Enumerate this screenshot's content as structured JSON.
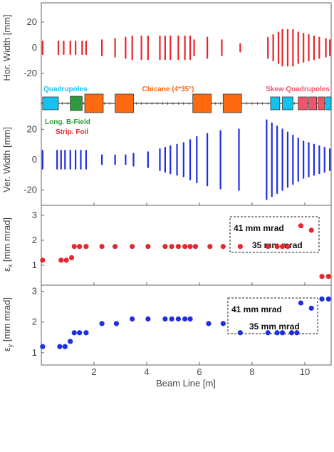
{
  "colors": {
    "red": "#e8262b",
    "blue": "#1f2ee0",
    "orange": "#ff6a10",
    "cyan": "#11c4ee",
    "green": "#2f9a3d",
    "pink": "#f0566a",
    "frame": "#666666"
  },
  "x_axis": {
    "label": "Beam Line [m]",
    "range": [
      0,
      11
    ],
    "ticks": [
      "2",
      "4",
      "6",
      "8",
      "10"
    ]
  },
  "chart_data": [
    {
      "type": "line",
      "ylabel": "Hor. Width [mm]",
      "ylim": [
        -35,
        35
      ],
      "yticks": [
        "20",
        "0",
        "-20"
      ],
      "segments": [
        {
          "x": 0.05,
          "h": 5
        },
        {
          "x": 0.65,
          "h": 5
        },
        {
          "x": 0.85,
          "h": 5
        },
        {
          "x": 1.1,
          "h": 5
        },
        {
          "x": 1.3,
          "h": 5
        },
        {
          "x": 1.55,
          "h": 5
        },
        {
          "x": 1.7,
          "h": 5
        },
        {
          "x": 2.3,
          "h": 6
        },
        {
          "x": 2.8,
          "h": 7
        },
        {
          "x": 3.2,
          "h": 8
        },
        {
          "x": 3.45,
          "h": 9
        },
        {
          "x": 3.8,
          "h": 9
        },
        {
          "x": 4.05,
          "h": 9
        },
        {
          "x": 4.5,
          "h": 9
        },
        {
          "x": 4.7,
          "h": 9
        },
        {
          "x": 4.9,
          "h": 9
        },
        {
          "x": 5.2,
          "h": 9
        },
        {
          "x": 5.45,
          "h": 9
        },
        {
          "x": 5.65,
          "h": 9
        },
        {
          "x": 5.8,
          "h": 6
        },
        {
          "x": 6.3,
          "h": 8
        },
        {
          "x": 6.85,
          "h": 6
        },
        {
          "x": 7.55,
          "h": 3
        },
        {
          "x": 8.6,
          "h": 8
        },
        {
          "x": 8.8,
          "h": 10
        },
        {
          "x": 9.0,
          "h": 12
        },
        {
          "x": 9.15,
          "h": 14
        },
        {
          "x": 9.35,
          "h": 14
        },
        {
          "x": 9.55,
          "h": 14
        },
        {
          "x": 9.75,
          "h": 12
        },
        {
          "x": 9.95,
          "h": 11
        },
        {
          "x": 10.15,
          "h": 10
        },
        {
          "x": 10.35,
          "h": 9
        },
        {
          "x": 10.55,
          "h": 8
        },
        {
          "x": 10.8,
          "h": 7
        },
        {
          "x": 10.95,
          "h": 6
        }
      ]
    },
    {
      "type": "diagram",
      "labels": {
        "quadrupoles": "Quadrupoles",
        "long_bfield": "Long. B-Field",
        "strip_foil": "Strip. Foil",
        "chicane": "Chicane (4*35°)",
        "skew_quadrupoles": "Skew Quadrupoles"
      },
      "elements": [
        {
          "x0": 0.05,
          "x1": 0.65,
          "kind": "cyan"
        },
        {
          "x0": 1.1,
          "x1": 1.55,
          "kind": "green"
        },
        {
          "x0": 1.65,
          "x1": 2.35,
          "kind": "orange"
        },
        {
          "x0": 2.8,
          "x1": 3.5,
          "kind": "orange"
        },
        {
          "x0": 5.75,
          "x1": 6.45,
          "kind": "orange"
        },
        {
          "x0": 6.9,
          "x1": 7.6,
          "kind": "orange"
        },
        {
          "x0": 8.7,
          "x1": 9.05,
          "kind": "cyan"
        },
        {
          "x0": 9.15,
          "x1": 9.55,
          "kind": "cyan"
        },
        {
          "x0": 9.75,
          "x1": 10.1,
          "kind": "pink"
        },
        {
          "x0": 10.15,
          "x1": 10.45,
          "kind": "pink"
        },
        {
          "x0": 10.5,
          "x1": 10.75,
          "kind": "pink"
        },
        {
          "x0": 10.8,
          "x1": 11.0,
          "kind": "cyan"
        }
      ]
    },
    {
      "type": "line",
      "ylabel": "Ver. Width [mm]",
      "ylim": [
        -30,
        30
      ],
      "yticks": [
        "20",
        "0",
        "-20"
      ],
      "segments": [
        {
          "x": 0.05,
          "h": 6
        },
        {
          "x": 0.6,
          "h": 6
        },
        {
          "x": 0.75,
          "h": 6
        },
        {
          "x": 0.9,
          "h": 6
        },
        {
          "x": 1.1,
          "h": 6
        },
        {
          "x": 1.3,
          "h": 6
        },
        {
          "x": 1.5,
          "h": 6
        },
        {
          "x": 1.7,
          "h": 6
        },
        {
          "x": 2.3,
          "h": 3
        },
        {
          "x": 2.8,
          "h": 3
        },
        {
          "x": 3.2,
          "h": 3
        },
        {
          "x": 3.5,
          "h": 4
        },
        {
          "x": 4.05,
          "h": 5
        },
        {
          "x": 4.5,
          "h": 7
        },
        {
          "x": 4.7,
          "h": 8
        },
        {
          "x": 4.9,
          "h": 9
        },
        {
          "x": 5.15,
          "h": 10
        },
        {
          "x": 5.4,
          "h": 11
        },
        {
          "x": 5.65,
          "h": 13
        },
        {
          "x": 5.9,
          "h": 15
        },
        {
          "x": 6.3,
          "h": 17
        },
        {
          "x": 6.8,
          "h": 19
        },
        {
          "x": 7.5,
          "h": 20
        },
        {
          "x": 8.55,
          "h": 26
        },
        {
          "x": 8.75,
          "h": 24
        },
        {
          "x": 8.95,
          "h": 22
        },
        {
          "x": 9.15,
          "h": 20
        },
        {
          "x": 9.35,
          "h": 18
        },
        {
          "x": 9.55,
          "h": 16
        },
        {
          "x": 9.75,
          "h": 14
        },
        {
          "x": 9.95,
          "h": 12
        },
        {
          "x": 10.15,
          "h": 11
        },
        {
          "x": 10.35,
          "h": 10
        },
        {
          "x": 10.55,
          "h": 9
        },
        {
          "x": 10.75,
          "h": 8
        },
        {
          "x": 10.95,
          "h": 7
        }
      ]
    },
    {
      "type": "scatter",
      "ylabel_main": "ε",
      "ylabel_sub": "x",
      "ylabel_unit": " [mm mrad]",
      "ylim": [
        0.2,
        3.4
      ],
      "yticks": [
        "3",
        "2",
        "1"
      ],
      "points": [
        {
          "x": 0.05,
          "y": 1.2
        },
        {
          "x": 0.75,
          "y": 1.2
        },
        {
          "x": 0.95,
          "y": 1.2
        },
        {
          "x": 1.15,
          "y": 1.3
        },
        {
          "x": 1.25,
          "y": 1.75
        },
        {
          "x": 1.45,
          "y": 1.75
        },
        {
          "x": 1.7,
          "y": 1.75
        },
        {
          "x": 2.3,
          "y": 1.75
        },
        {
          "x": 2.8,
          "y": 1.75
        },
        {
          "x": 3.45,
          "y": 1.75
        },
        {
          "x": 4.05,
          "y": 1.75
        },
        {
          "x": 4.7,
          "y": 1.75
        },
        {
          "x": 4.95,
          "y": 1.75
        },
        {
          "x": 5.2,
          "y": 1.75
        },
        {
          "x": 5.45,
          "y": 1.75
        },
        {
          "x": 5.65,
          "y": 1.75
        },
        {
          "x": 5.85,
          "y": 1.75
        },
        {
          "x": 6.4,
          "y": 1.75
        },
        {
          "x": 6.9,
          "y": 1.75
        },
        {
          "x": 7.55,
          "y": 1.75
        },
        {
          "x": 8.6,
          "y": 1.75
        },
        {
          "x": 8.95,
          "y": 1.75
        },
        {
          "x": 9.15,
          "y": 1.75
        },
        {
          "x": 9.35,
          "y": 1.75
        },
        {
          "x": 9.85,
          "y": 2.58
        },
        {
          "x": 10.25,
          "y": 2.4
        },
        {
          "x": 10.65,
          "y": 0.55
        },
        {
          "x": 10.9,
          "y": 0.55
        }
      ],
      "legend": {
        "a": "41 mm mrad",
        "b": "35 mm mrad"
      }
    },
    {
      "type": "scatter",
      "ylabel_main": "ε",
      "ylabel_sub": "y",
      "ylabel_unit": " [mm mrad]",
      "ylim": [
        0.6,
        3.2
      ],
      "yticks": [
        "3",
        "2",
        "1"
      ],
      "points": [
        {
          "x": 0.05,
          "y": 1.2
        },
        {
          "x": 0.7,
          "y": 1.2
        },
        {
          "x": 0.9,
          "y": 1.2
        },
        {
          "x": 1.1,
          "y": 1.37
        },
        {
          "x": 1.25,
          "y": 1.65
        },
        {
          "x": 1.45,
          "y": 1.65
        },
        {
          "x": 1.7,
          "y": 1.65
        },
        {
          "x": 2.3,
          "y": 1.95
        },
        {
          "x": 2.85,
          "y": 1.95
        },
        {
          "x": 3.45,
          "y": 2.1
        },
        {
          "x": 4.05,
          "y": 2.1
        },
        {
          "x": 4.7,
          "y": 2.1
        },
        {
          "x": 4.95,
          "y": 2.1
        },
        {
          "x": 5.2,
          "y": 2.1
        },
        {
          "x": 5.45,
          "y": 2.1
        },
        {
          "x": 5.65,
          "y": 2.1
        },
        {
          "x": 6.35,
          "y": 1.95
        },
        {
          "x": 6.9,
          "y": 1.95
        },
        {
          "x": 7.55,
          "y": 1.65
        },
        {
          "x": 8.6,
          "y": 1.65
        },
        {
          "x": 8.95,
          "y": 1.65
        },
        {
          "x": 9.15,
          "y": 1.65
        },
        {
          "x": 9.5,
          "y": 1.65
        },
        {
          "x": 9.7,
          "y": 1.65
        },
        {
          "x": 9.85,
          "y": 2.62
        },
        {
          "x": 10.25,
          "y": 2.45
        },
        {
          "x": 10.65,
          "y": 2.75
        },
        {
          "x": 10.9,
          "y": 2.75
        }
      ],
      "legend": {
        "a": "41 mm mrad",
        "b": "35 mm mrad"
      }
    }
  ]
}
